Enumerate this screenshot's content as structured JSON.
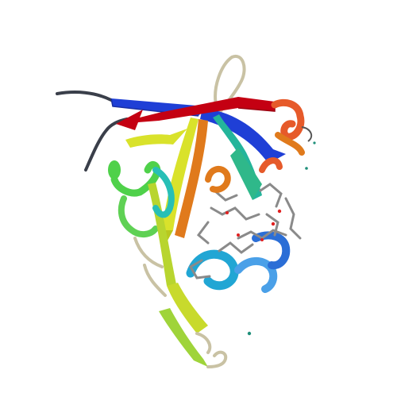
{
  "scene": {
    "subject": "protein-ribbon-structure",
    "background": "#ffffff",
    "palette": {
      "blue": "#1f3fd6",
      "dark_blue": "#2b2fbf",
      "red": "#c40012",
      "dark_red": "#9b0010",
      "orange": "#e07a1c",
      "orange_red": "#e65a2a",
      "yellow": "#d9e22b",
      "yellow_green": "#b8d52f",
      "green": "#4fd14a",
      "teal": "#24b59b",
      "cyan": "#21a6d4",
      "light_blue": "#4aa0e8",
      "coil_gray": "#8a8a8a",
      "coil_dark": "#3a3f4a",
      "bead_red": "#e02020",
      "bead_teal": "#1f8f7a"
    }
  }
}
